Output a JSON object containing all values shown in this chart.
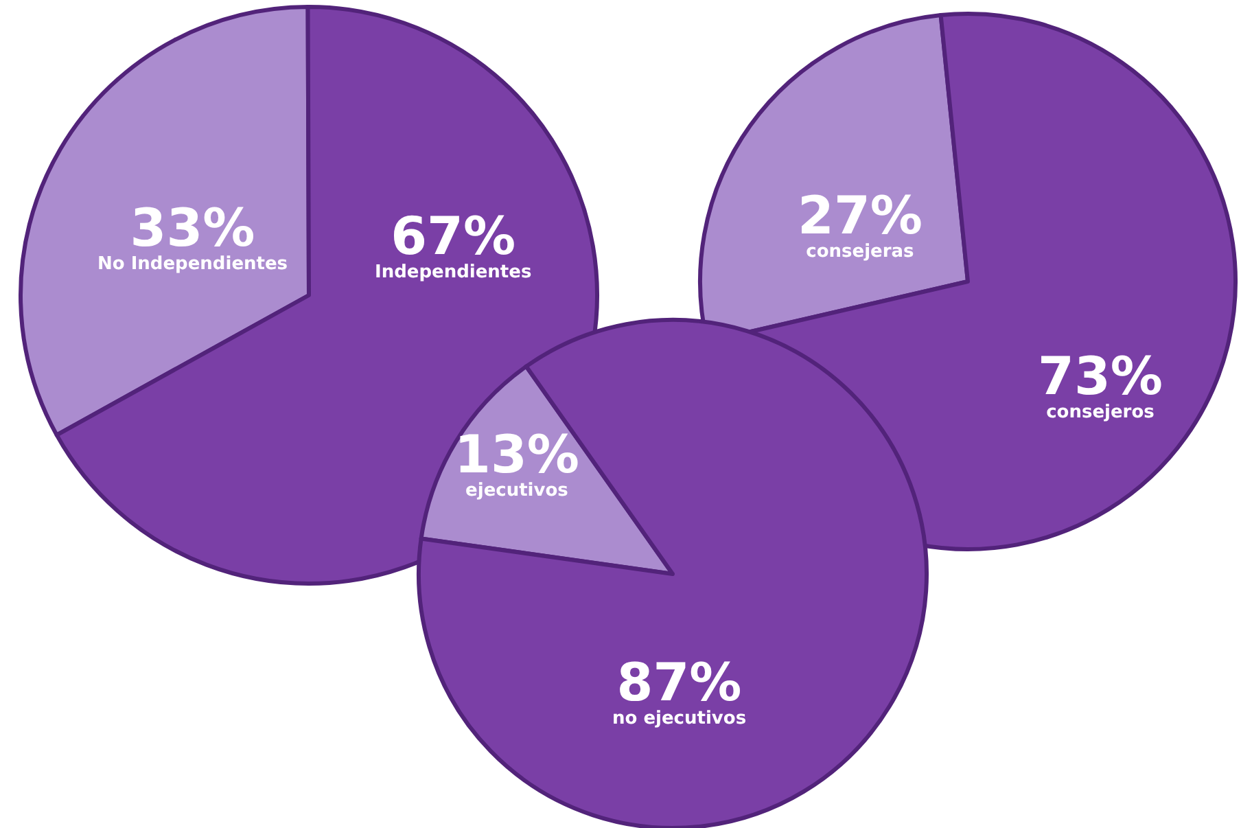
{
  "chart_data": [
    {
      "type": "pie",
      "categories": [
        "No Independientes",
        "Independientes"
      ],
      "values": [
        33,
        67
      ],
      "value_labels": [
        "33%",
        "67%"
      ],
      "colors": [
        "#ab8ccf",
        "#7a3fa6"
      ]
    },
    {
      "type": "pie",
      "categories": [
        "consejeras",
        "consejeros"
      ],
      "values": [
        27,
        73
      ],
      "value_labels": [
        "27%",
        "73%"
      ],
      "colors": [
        "#ab8ccf",
        "#7a3fa6"
      ]
    },
    {
      "type": "pie",
      "categories": [
        "ejecutivos",
        "no ejecutivos"
      ],
      "values": [
        13,
        87
      ],
      "value_labels": [
        "13%",
        "87%"
      ],
      "colors": [
        "#ab8ccf",
        "#7a3fa6"
      ]
    }
  ]
}
